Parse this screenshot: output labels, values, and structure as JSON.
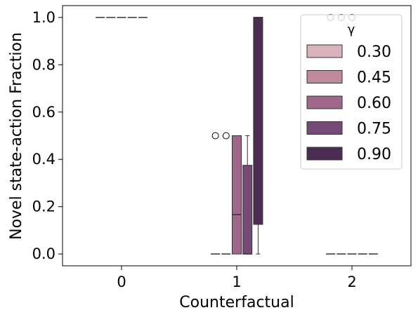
{
  "chart_data": {
    "type": "box",
    "xlabel": "Counterfactual",
    "ylabel": "Novel state-action Fraction",
    "categories": [
      "0",
      "1",
      "2"
    ],
    "ylim": [
      -0.05,
      1.05
    ],
    "yticks": [
      0.0,
      0.2,
      0.4,
      0.6,
      0.8,
      1.0
    ],
    "ytick_labels": [
      "0.0",
      "0.2",
      "0.4",
      "0.6",
      "0.8",
      "1.0"
    ],
    "grid": false,
    "legend": {
      "title": "γ",
      "placement": "top-right",
      "entries": [
        "0.30",
        "0.45",
        "0.60",
        "0.75",
        "0.90"
      ]
    },
    "series_colors": [
      "#dbb3bd",
      "#c08a9c",
      "#a0688a",
      "#754a76",
      "#4b2d54"
    ],
    "series": [
      {
        "name": "0.30",
        "boxes": [
          {
            "q1": 1.0,
            "median": 1.0,
            "q3": 1.0,
            "whislo": 1.0,
            "whishi": 1.0,
            "fliers": []
          },
          {
            "q1": 0.0,
            "median": 0.0,
            "q3": 0.0,
            "whislo": 0.0,
            "whishi": 0.0,
            "fliers": [
              0.5
            ]
          },
          {
            "q1": 0.0,
            "median": 0.0,
            "q3": 0.0,
            "whislo": 0.0,
            "whishi": 0.0,
            "fliers": [
              1.0
            ]
          }
        ]
      },
      {
        "name": "0.45",
        "boxes": [
          {
            "q1": 1.0,
            "median": 1.0,
            "q3": 1.0,
            "whislo": 1.0,
            "whishi": 1.0,
            "fliers": []
          },
          {
            "q1": 0.0,
            "median": 0.0,
            "q3": 0.0,
            "whislo": 0.0,
            "whishi": 0.0,
            "fliers": [
              0.5
            ]
          },
          {
            "q1": 0.0,
            "median": 0.0,
            "q3": 0.0,
            "whislo": 0.0,
            "whishi": 0.0,
            "fliers": [
              1.0
            ]
          }
        ]
      },
      {
        "name": "0.60",
        "boxes": [
          {
            "q1": 1.0,
            "median": 1.0,
            "q3": 1.0,
            "whislo": 1.0,
            "whishi": 1.0,
            "fliers": []
          },
          {
            "q1": 0.0,
            "median": 0.1667,
            "q3": 0.5,
            "whislo": 0.0,
            "whishi": 0.5,
            "fliers": []
          },
          {
            "q1": 0.0,
            "median": 0.0,
            "q3": 0.0,
            "whislo": 0.0,
            "whishi": 0.0,
            "fliers": [
              1.0
            ]
          }
        ]
      },
      {
        "name": "0.75",
        "boxes": [
          {
            "q1": 1.0,
            "median": 1.0,
            "q3": 1.0,
            "whislo": 1.0,
            "whishi": 1.0,
            "fliers": []
          },
          {
            "q1": 0.0,
            "median": 0.0,
            "q3": 0.375,
            "whislo": 0.0,
            "whishi": 0.5,
            "fliers": []
          },
          {
            "q1": 0.0,
            "median": 0.0,
            "q3": 0.0,
            "whislo": 0.0,
            "whishi": 0.0,
            "fliers": []
          }
        ]
      },
      {
        "name": "0.90",
        "boxes": [
          {
            "q1": 1.0,
            "median": 1.0,
            "q3": 1.0,
            "whislo": 1.0,
            "whishi": 1.0,
            "fliers": []
          },
          {
            "q1": 0.125,
            "median": 1.0,
            "q3": 1.0,
            "whislo": 0.0,
            "whishi": 1.0,
            "fliers": []
          },
          {
            "q1": 0.0,
            "median": 0.0,
            "q3": 0.0,
            "whislo": 0.0,
            "whishi": 0.0,
            "fliers": []
          }
        ]
      }
    ]
  }
}
